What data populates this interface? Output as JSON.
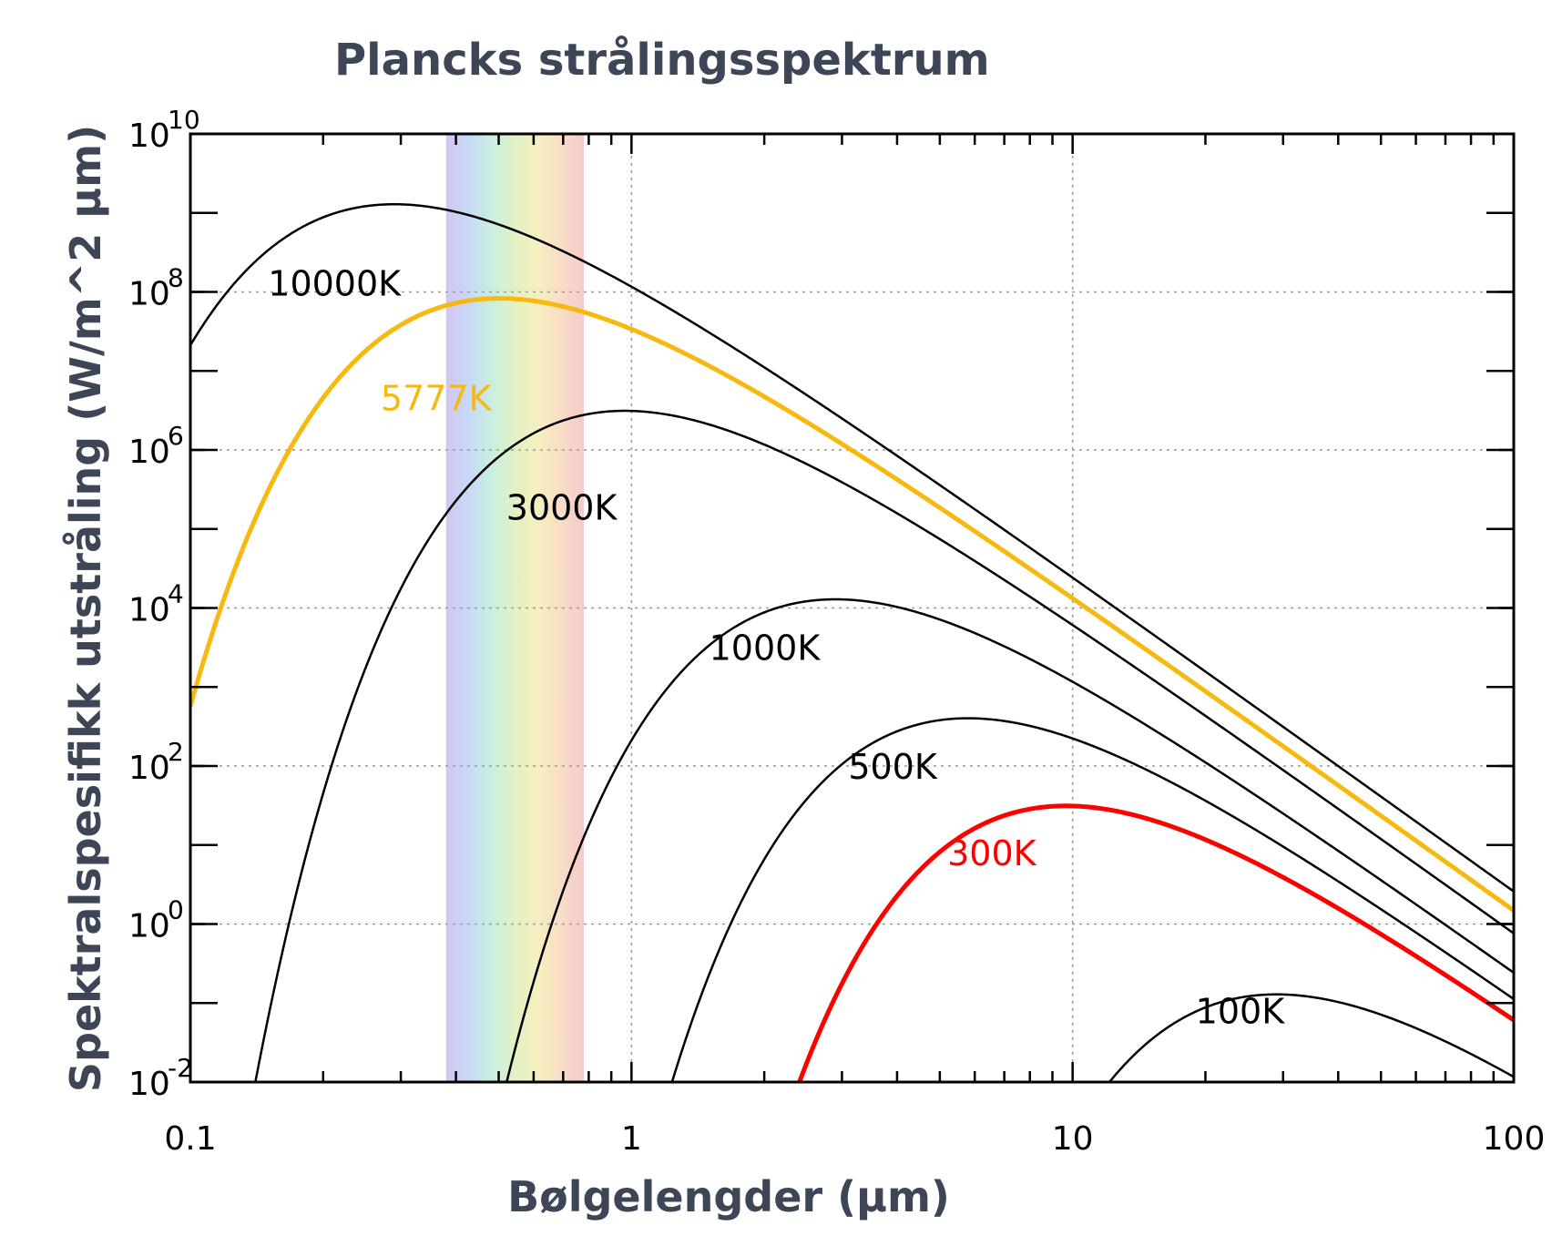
{
  "chart_data": {
    "type": "line",
    "title": "Plancks strålingsspektrum",
    "xlabel": "Bølgelengder (μm)",
    "ylabel": "Spektralspesifikk utstråling (W/m^2 μm)",
    "xscale": "log",
    "yscale": "log",
    "xlim": [
      0.1,
      100
    ],
    "ylim": [
      0.01,
      10000000000
    ],
    "grid": true,
    "x_ticks": [
      {
        "value": 0.1,
        "label": "0.1"
      },
      {
        "value": 1,
        "label": "1"
      },
      {
        "value": 10,
        "label": "10"
      },
      {
        "value": 100,
        "label": "100"
      }
    ],
    "y_ticks": [
      {
        "value": 0.01,
        "base": "10",
        "exp": "-2"
      },
      {
        "value": 1,
        "base": "10",
        "exp": "0"
      },
      {
        "value": 100,
        "base": "10",
        "exp": "2"
      },
      {
        "value": 10000,
        "base": "10",
        "exp": "4"
      },
      {
        "value": 1000000,
        "base": "10",
        "exp": "6"
      },
      {
        "value": 100000000,
        "base": "10",
        "exp": "8"
      },
      {
        "value": 10000000000,
        "base": "10",
        "exp": "10"
      }
    ],
    "visible_band": {
      "from": 0.38,
      "to": 0.78,
      "colors": [
        "#d3c6ee",
        "#c7d9f7",
        "#c9efe0",
        "#e2f1c4",
        "#f6efbf",
        "#f8ddc6",
        "#f4cbcb"
      ]
    },
    "series": [
      {
        "name": "10000K",
        "temperature": 10000,
        "color": "#000000",
        "thick": false,
        "label_at": {
          "x": 0.15,
          "y": 130000000
        }
      },
      {
        "name": "5777K",
        "temperature": 5777,
        "color": "#f7b90f",
        "thick": true,
        "label_at": {
          "x": 0.27,
          "y": 4600000
        }
      },
      {
        "name": "3000K",
        "temperature": 3000,
        "color": "#000000",
        "thick": false,
        "label_at": {
          "x": 0.52,
          "y": 190000
        }
      },
      {
        "name": "1000K",
        "temperature": 1000,
        "color": "#000000",
        "thick": false,
        "label_at": {
          "x": 1.5,
          "y": 3200
        }
      },
      {
        "name": "500K",
        "temperature": 500,
        "color": "#000000",
        "thick": false,
        "label_at": {
          "x": 3.1,
          "y": 100
        }
      },
      {
        "name": "300K",
        "temperature": 300,
        "color": "#ff0000",
        "thick": true,
        "label_at": {
          "x": 5.2,
          "y": 8
        }
      },
      {
        "name": "100K",
        "temperature": 100,
        "color": "#000000",
        "thick": false,
        "label_at": {
          "x": 19,
          "y": 0.08
        }
      }
    ]
  }
}
